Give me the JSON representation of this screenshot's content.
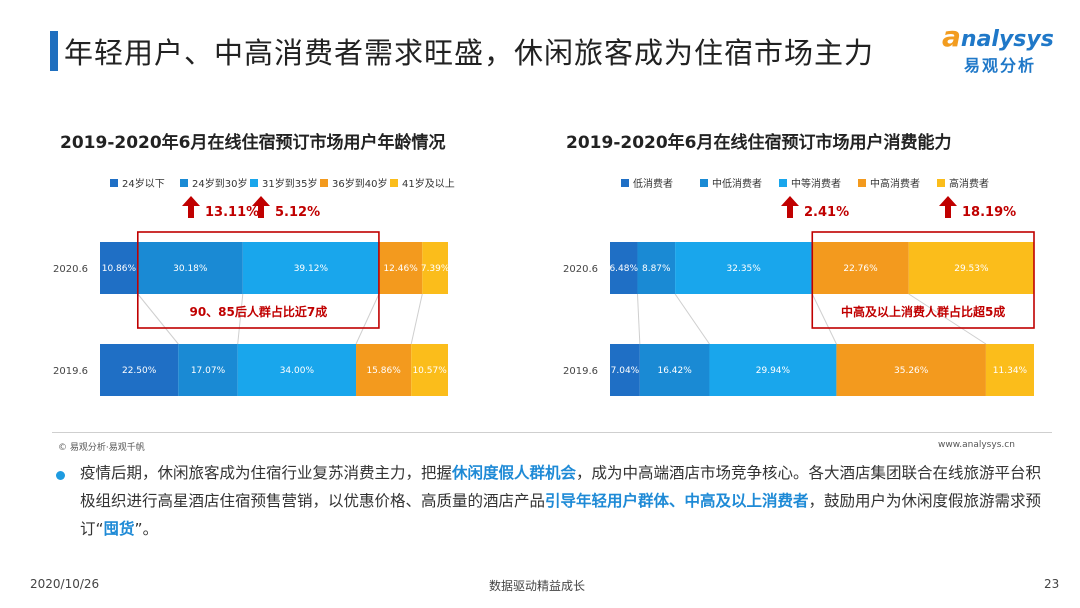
{
  "page": {
    "title": "年轻用户、中高消费者需求旺盛，休闲旅客成为住宿市场主力",
    "logo_en_initial": "a",
    "logo_en_rest": "nalysys",
    "logo_cn": "易观分析",
    "source": "© 易观分析·易观千帆",
    "site": "www.analysys.cn",
    "footer_date": "2020/10/26",
    "footer_center": "数据驱动精益成长",
    "footer_page": "23"
  },
  "paragraph": [
    {
      "text": "疫情后期，休闲旅客成为住宿行业复苏消费主力，把握",
      "hl": false
    },
    {
      "text": "休闲度假人群机会",
      "hl": true
    },
    {
      "text": "，成为中高端酒店市场竞争核心。各大酒店集团联合在线旅游平台积极组织进行高星酒店住宿预售营销，以优惠价格、高质量的酒店产品",
      "hl": false
    },
    {
      "text": "引导年轻用户群体、中高及以上消费者",
      "hl": true
    },
    {
      "text": "，鼓励用户为休闲度假旅游需求预订“",
      "hl": false
    },
    {
      "text": "囤货",
      "hl": true
    },
    {
      "text": "”。",
      "hl": false
    }
  ],
  "chart_data": [
    {
      "type": "bar",
      "orientation": "horizontal-stacked-100",
      "title": "2019-2020年6月在线住宿预订市场用户年龄情况",
      "categories": [
        "2020.6",
        "2019.6"
      ],
      "series": [
        {
          "name": "24岁以下",
          "color": "#1f6fc5",
          "values": [
            10.86,
            22.5
          ],
          "labels": [
            "10.86%",
            "22.50%"
          ]
        },
        {
          "name": "24岁到30岁",
          "color": "#1a8ad4",
          "values": [
            30.18,
            17.07
          ],
          "labels": [
            "30.18%",
            "17.07%"
          ]
        },
        {
          "name": "31岁到35岁",
          "color": "#19a6ec",
          "values": [
            39.12,
            34.0
          ],
          "labels": [
            "39.12%",
            "34.00%"
          ]
        },
        {
          "name": "36岁到40岁",
          "color": "#f39a1e",
          "values": [
            12.46,
            15.86
          ],
          "labels": [
            "12.46%",
            "15.86%"
          ]
        },
        {
          "name": "41岁及以上",
          "color": "#fbbd1b",
          "values": [
            7.39,
            10.57
          ],
          "labels": [
            "7.39%",
            "10.57%"
          ]
        }
      ],
      "growth_annotations": [
        {
          "series_index": 1,
          "text": "13.11%"
        },
        {
          "series_index": 2,
          "text": "5.12%"
        }
      ],
      "highlight": {
        "series_from": 1,
        "series_to": 2,
        "text": "90、85后人群占比近7成"
      },
      "legend": "top"
    },
    {
      "type": "bar",
      "orientation": "horizontal-stacked-100",
      "title": "2019-2020年6月在线住宿预订市场用户消费能力",
      "categories": [
        "2020.6",
        "2019.6"
      ],
      "series": [
        {
          "name": "低消费者",
          "color": "#1f6fc5",
          "values": [
            6.48,
            7.04
          ],
          "labels": [
            "6.48%",
            "7.04%"
          ]
        },
        {
          "name": "中低消费者",
          "color": "#1a8ad4",
          "values": [
            8.87,
            16.42
          ],
          "labels": [
            "8.87%",
            "16.42%"
          ]
        },
        {
          "name": "中等消费者",
          "color": "#19a6ec",
          "values": [
            32.35,
            29.94
          ],
          "labels": [
            "32.35%",
            "29.94%"
          ]
        },
        {
          "name": "中高消费者",
          "color": "#f39a1e",
          "values": [
            22.76,
            35.26
          ],
          "labels": [
            "22.76%",
            "35.26%"
          ]
        },
        {
          "name": "高消费者",
          "color": "#fbbd1b",
          "values": [
            29.53,
            11.34
          ],
          "labels": [
            "29.53%",
            "11.34%"
          ]
        }
      ],
      "growth_annotations": [
        {
          "series_index": 2,
          "text": "2.41%"
        },
        {
          "series_index": 4,
          "text": "18.19%"
        }
      ],
      "highlight": {
        "series_from": 3,
        "series_to": 4,
        "text": "中高及以上消费人群占比超5成"
      },
      "legend": "top"
    }
  ]
}
